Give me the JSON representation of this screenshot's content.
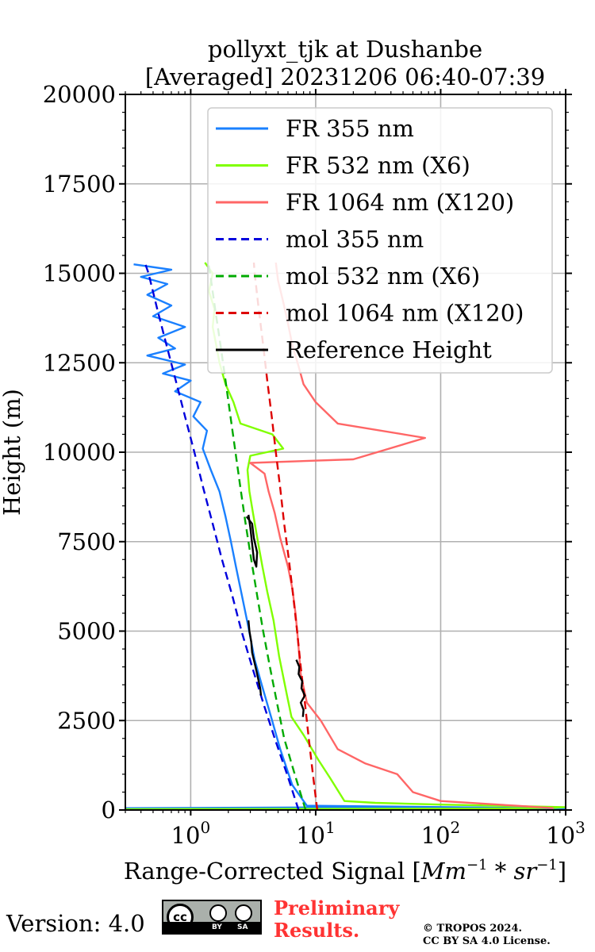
{
  "chart_data": {
    "type": "line",
    "title": "pollyxt_tjk at Dushanbe",
    "subtitle": "[Averaged] 20231206 06:40-07:39",
    "xlabel": "Range-Corrected Signal [",
    "xlabel_math": "Mm",
    "xlabel_unit_tail": " * sr",
    "xlabel_close": "]",
    "xlabel_exp": "−1",
    "ylabel": "Height (m)",
    "x_scale": "log",
    "xlim": [
      0.3,
      1000
    ],
    "ylim": [
      0,
      20000
    ],
    "grid": true,
    "legend_location": "upper right",
    "x_ticks": [
      {
        "base": "10",
        "exp": "0",
        "value": 1
      },
      {
        "base": "10",
        "exp": "1",
        "value": 10
      },
      {
        "base": "10",
        "exp": "2",
        "value": 100
      },
      {
        "base": "10",
        "exp": "3",
        "value": 1000
      }
    ],
    "y_ticks": [
      {
        "label": "0",
        "value": 0
      },
      {
        "label": "2500",
        "value": 2500
      },
      {
        "label": "5000",
        "value": 5000
      },
      {
        "label": "7500",
        "value": 7500
      },
      {
        "label": "10000",
        "value": 10000
      },
      {
        "label": "12500",
        "value": 12500
      },
      {
        "label": "15000",
        "value": 15000
      },
      {
        "label": "17500",
        "value": 17500
      },
      {
        "label": "20000",
        "value": 20000
      }
    ],
    "series": [
      {
        "name": "FR 355 nm",
        "color": "#1a80ff",
        "style": "solid",
        "points": [
          [
            0.3,
            50
          ],
          [
            9,
            70
          ],
          [
            200,
            50
          ],
          [
            1000,
            45
          ],
          [
            8.5,
            120
          ],
          [
            6.5,
            700
          ],
          [
            5.2,
            1700
          ],
          [
            4.4,
            2600
          ],
          [
            3.7,
            3500
          ],
          [
            3.25,
            4200
          ],
          [
            2.9,
            5100
          ],
          [
            2.6,
            5900
          ],
          [
            2.3,
            6800
          ],
          [
            2.1,
            7500
          ],
          [
            1.9,
            8200
          ],
          [
            1.7,
            8900
          ],
          [
            1.45,
            9500
          ],
          [
            1.25,
            10100
          ],
          [
            1.35,
            10600
          ],
          [
            1.05,
            11000
          ],
          [
            1.2,
            11400
          ],
          [
            0.75,
            11700
          ],
          [
            1.0,
            12000
          ],
          [
            0.6,
            12200
          ],
          [
            0.9,
            12450
          ],
          [
            0.45,
            12700
          ],
          [
            0.75,
            12900
          ],
          [
            0.55,
            13200
          ],
          [
            0.9,
            13500
          ],
          [
            0.5,
            13800
          ],
          [
            0.7,
            14100
          ],
          [
            0.45,
            14400
          ],
          [
            0.65,
            14700
          ],
          [
            0.4,
            14900
          ],
          [
            0.7,
            15100
          ],
          [
            0.35,
            15250
          ]
        ]
      },
      {
        "name": "FR 532 nm (X6)",
        "color": "#80ff00",
        "style": "solid",
        "points": [
          [
            0.3,
            25
          ],
          [
            200,
            40
          ],
          [
            800,
            60
          ],
          [
            1000,
            80
          ],
          [
            100,
            150
          ],
          [
            30,
            200
          ],
          [
            17,
            250
          ],
          [
            13,
            900
          ],
          [
            10.5,
            1400
          ],
          [
            8,
            2100
          ],
          [
            6.4,
            2600
          ],
          [
            5.9,
            3200
          ],
          [
            5.1,
            4300
          ],
          [
            4.6,
            5300
          ],
          [
            4.1,
            6100
          ],
          [
            3.75,
            6800
          ],
          [
            3.45,
            7500
          ],
          [
            3.15,
            8300
          ],
          [
            2.95,
            8900
          ],
          [
            2.85,
            9500
          ],
          [
            3.0,
            9900
          ],
          [
            5.5,
            10100
          ],
          [
            4.5,
            10500
          ],
          [
            2.5,
            10800
          ],
          [
            2.2,
            11400
          ],
          [
            1.9,
            11900
          ],
          [
            1.7,
            12500
          ],
          [
            1.6,
            13000
          ],
          [
            1.5,
            13500
          ],
          [
            1.55,
            14000
          ],
          [
            1.4,
            14500
          ],
          [
            1.5,
            15000
          ],
          [
            1.3,
            15300
          ]
        ]
      },
      {
        "name": "FR 1064 nm (X120)",
        "color": "#ff6666",
        "style": "solid",
        "points": [
          [
            800,
            50
          ],
          [
            400,
            120
          ],
          [
            100,
            250
          ],
          [
            60,
            500
          ],
          [
            45,
            1000
          ],
          [
            25,
            1300
          ],
          [
            15,
            1700
          ],
          [
            11,
            2500
          ],
          [
            8.5,
            3000
          ],
          [
            7.6,
            3800
          ],
          [
            7.2,
            4800
          ],
          [
            6.9,
            5500
          ],
          [
            6.5,
            6200
          ],
          [
            6.0,
            6800
          ],
          [
            5.2,
            7600
          ],
          [
            4.7,
            8300
          ],
          [
            4.2,
            8900
          ],
          [
            3.9,
            9400
          ],
          [
            3.0,
            9700
          ],
          [
            20,
            9800
          ],
          [
            75,
            10400
          ],
          [
            15,
            10800
          ],
          [
            10,
            11400
          ],
          [
            8,
            11900
          ],
          [
            7.3,
            12400
          ],
          [
            6.5,
            13000
          ],
          [
            6.0,
            13600
          ],
          [
            5.5,
            14200
          ],
          [
            5.0,
            14800
          ],
          [
            4.8,
            15300
          ]
        ]
      },
      {
        "name": "mol 355 nm",
        "color": "#0000dd",
        "style": "dashed",
        "points": [
          [
            7.3,
            0
          ],
          [
            5.9,
            1000
          ],
          [
            4.7,
            2000
          ],
          [
            3.8,
            3000
          ],
          [
            3.1,
            4000
          ],
          [
            2.55,
            5000
          ],
          [
            2.15,
            6000
          ],
          [
            1.78,
            7000
          ],
          [
            1.5,
            8000
          ],
          [
            1.26,
            9000
          ],
          [
            1.07,
            10000
          ],
          [
            0.9,
            11000
          ],
          [
            0.76,
            12000
          ],
          [
            0.64,
            13000
          ],
          [
            0.54,
            14000
          ],
          [
            0.46,
            15000
          ],
          [
            0.43,
            15300
          ]
        ]
      },
      {
        "name": "mol 532 nm (X6)",
        "color": "#00aa00",
        "style": "dashed",
        "points": [
          [
            8.3,
            0
          ],
          [
            6.8,
            1000
          ],
          [
            5.6,
            2000
          ],
          [
            4.9,
            3000
          ],
          [
            4.3,
            4000
          ],
          [
            3.8,
            5000
          ],
          [
            3.4,
            6000
          ],
          [
            3.05,
            7000
          ],
          [
            2.75,
            8000
          ],
          [
            2.5,
            9000
          ],
          [
            2.28,
            10000
          ],
          [
            2.08,
            11000
          ],
          [
            1.9,
            12000
          ],
          [
            1.73,
            13000
          ],
          [
            1.57,
            14000
          ],
          [
            1.43,
            15000
          ],
          [
            1.38,
            15300
          ]
        ]
      },
      {
        "name": "mol 1064 nm (X120)",
        "color": "#dd0000",
        "style": "dashed",
        "points": [
          [
            10.3,
            0
          ],
          [
            9.5,
            1000
          ],
          [
            8.8,
            2000
          ],
          [
            8.2,
            3000
          ],
          [
            7.6,
            4000
          ],
          [
            7.1,
            5000
          ],
          [
            6.6,
            6000
          ],
          [
            6.1,
            7000
          ],
          [
            5.6,
            8000
          ],
          [
            5.2,
            9000
          ],
          [
            4.8,
            10000
          ],
          [
            4.45,
            11000
          ],
          [
            4.1,
            12000
          ],
          [
            3.8,
            13000
          ],
          [
            3.5,
            14000
          ],
          [
            3.25,
            15000
          ],
          [
            3.2,
            15300
          ]
        ]
      },
      {
        "name": "Reference Height",
        "color": "#000000",
        "style": "solid",
        "points": [
          [
            2.8,
            8200
          ],
          [
            3.1,
            8000
          ],
          [
            3.2,
            7600
          ],
          [
            3.4,
            7200
          ],
          [
            3.35,
            6800
          ],
          [
            3.2,
            7000
          ],
          [
            3.0,
            7900
          ],
          [
            2.9,
            8250
          ]
        ],
        "extra_segments": [
          [
            [
              2.9,
              5300
            ],
            [
              2.95,
              5000
            ],
            [
              3.05,
              4700
            ],
            [
              3.1,
              4400
            ],
            [
              3.3,
              4000
            ],
            [
              3.45,
              3700
            ],
            [
              3.6,
              3400
            ],
            [
              3.65,
              3200
            ]
          ],
          [
            [
              7.0,
              4200
            ],
            [
              7.4,
              4000
            ],
            [
              7.3,
              3800
            ],
            [
              7.8,
              3600
            ],
            [
              7.7,
              3400
            ],
            [
              8.2,
              3200
            ],
            [
              7.6,
              3000
            ],
            [
              8.0,
              2800
            ],
            [
              7.9,
              2600
            ]
          ]
        ]
      }
    ]
  },
  "footer": {
    "version_label": "Version: 4.0",
    "license_badge": "CC BY SA",
    "badge_cc": "cc",
    "badge_by": "BY",
    "badge_sa": "SA",
    "preliminary_line1": "Preliminary",
    "preliminary_line2": "Results.",
    "copyright_line1": "© TROPOS 2024.",
    "copyright_line2": "CC BY SA 4.0 License."
  }
}
